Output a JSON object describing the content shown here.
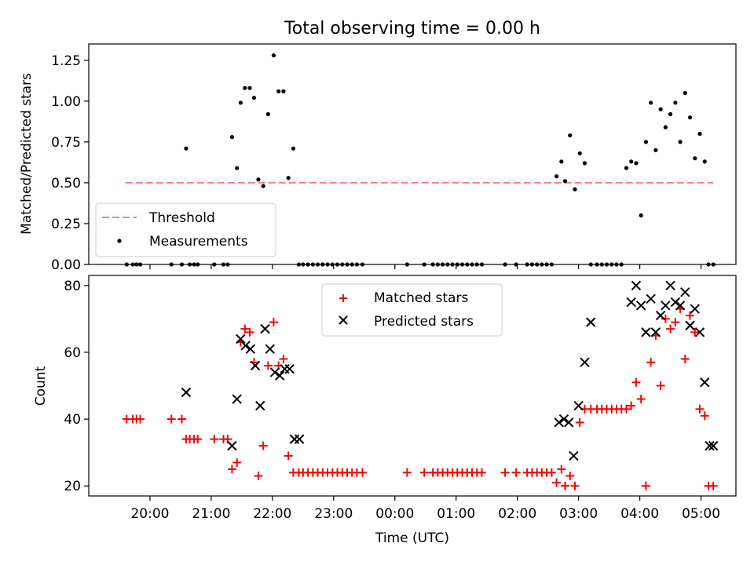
{
  "chart_data": [
    {
      "type": "scatter",
      "title": "Total observing time = 0.00 h",
      "ylabel": "Matched/Predicted stars",
      "ylim": [
        0,
        1.35
      ],
      "yticks": [
        0,
        0.25,
        0.5,
        0.75,
        1.0,
        1.25
      ],
      "ytick_labels": [
        "0.00",
        "0.25",
        "0.50",
        "0.75",
        "1.00",
        "1.25"
      ],
      "legend_position": "lower-left",
      "threshold": {
        "name": "Threshold",
        "value": 0.5,
        "x_start": 19.6,
        "x_end": 29.2,
        "color": "#ff7f7f"
      },
      "measurements": {
        "name": "Measurements",
        "color": "#000000",
        "x": [
          19.62,
          19.72,
          19.78,
          19.84,
          20.35,
          20.52,
          20.59,
          20.65,
          20.72,
          20.78,
          21.05,
          21.2,
          21.27,
          21.34,
          21.42,
          21.48,
          21.55,
          21.63,
          21.7,
          21.77,
          21.85,
          21.93,
          22.02,
          22.1,
          22.18,
          22.26,
          22.34,
          22.43,
          22.5,
          22.58,
          22.66,
          22.74,
          22.82,
          22.9,
          22.98,
          23.06,
          23.14,
          23.22,
          23.3,
          23.38,
          23.47,
          24.2,
          24.48,
          24.62,
          24.7,
          24.78,
          24.86,
          24.94,
          25.02,
          25.1,
          25.18,
          25.26,
          25.34,
          25.42,
          25.8,
          25.98,
          26.16,
          26.24,
          26.32,
          26.4,
          26.48,
          26.56,
          26.64,
          26.72,
          26.78,
          26.86,
          26.94,
          27.02,
          27.1,
          27.2,
          27.3,
          27.38,
          27.46,
          27.54,
          27.62,
          27.7,
          27.78,
          27.86,
          27.94,
          28.02,
          28.1,
          28.18,
          28.26,
          28.34,
          28.42,
          28.5,
          28.58,
          28.66,
          28.74,
          28.82,
          28.9,
          28.98,
          29.06,
          29.12,
          29.2
        ],
        "y": [
          0,
          0,
          0,
          0,
          0,
          0,
          0.71,
          0,
          0,
          0,
          0,
          0,
          0,
          0.78,
          0.59,
          0.99,
          1.08,
          1.08,
          1.02,
          0.52,
          0.48,
          0.92,
          1.28,
          1.06,
          1.06,
          0.53,
          0.71,
          0,
          0,
          0,
          0,
          0,
          0,
          0,
          0,
          0,
          0,
          0,
          0,
          0,
          0,
          0,
          0,
          0,
          0,
          0,
          0,
          0,
          0,
          0,
          0,
          0,
          0,
          0,
          0,
          0,
          0,
          0,
          0,
          0,
          0,
          0,
          0.54,
          0.63,
          0.51,
          0.79,
          0.46,
          0.68,
          0.62,
          0,
          0,
          0,
          0,
          0,
          0,
          0,
          0.59,
          0.63,
          0.62,
          0.3,
          0.75,
          0.99,
          0.7,
          0.95,
          0.84,
          0.92,
          0.99,
          0.75,
          1.05,
          0.9,
          0.65,
          0.8,
          0.63,
          0,
          0
        ]
      }
    },
    {
      "type": "scatter",
      "xlabel": "Time (UTC)",
      "ylabel": "Count",
      "ylim": [
        17,
        83
      ],
      "xlim": [
        19.0,
        29.57
      ],
      "yticks": [
        20,
        40,
        60,
        80
      ],
      "ytick_labels": [
        "20",
        "40",
        "60",
        "80"
      ],
      "xticks": [
        20,
        21,
        22,
        23,
        24,
        25,
        26,
        27,
        28,
        29
      ],
      "xtick_labels": [
        "20:00",
        "21:00",
        "22:00",
        "23:00",
        "00:00",
        "01:00",
        "02:00",
        "03:00",
        "04:00",
        "05:00"
      ],
      "legend_position": "upper-center",
      "series": [
        {
          "name": "Matched stars",
          "marker": "plus",
          "color": "#ff0000",
          "x": [
            19.62,
            19.72,
            19.78,
            19.84,
            20.35,
            20.52,
            20.59,
            20.65,
            20.72,
            20.78,
            21.05,
            21.2,
            21.27,
            21.34,
            21.42,
            21.48,
            21.55,
            21.63,
            21.7,
            21.77,
            21.85,
            21.93,
            22.02,
            22.1,
            22.18,
            22.26,
            22.34,
            22.43,
            22.5,
            22.58,
            22.66,
            22.74,
            22.82,
            22.9,
            22.98,
            23.06,
            23.14,
            23.22,
            23.3,
            23.38,
            23.47,
            24.2,
            24.48,
            24.62,
            24.7,
            24.78,
            24.86,
            24.94,
            25.02,
            25.1,
            25.18,
            25.26,
            25.34,
            25.42,
            25.8,
            25.98,
            26.16,
            26.24,
            26.32,
            26.4,
            26.48,
            26.56,
            26.64,
            26.72,
            26.78,
            26.86,
            26.94,
            27.02,
            27.1,
            27.2,
            27.3,
            27.38,
            27.46,
            27.54,
            27.62,
            27.7,
            27.78,
            27.86,
            27.94,
            28.02,
            28.1,
            28.18,
            28.26,
            28.34,
            28.42,
            28.5,
            28.58,
            28.66,
            28.74,
            28.82,
            28.9,
            28.98,
            29.06,
            29.12,
            29.2
          ],
          "y": [
            40,
            40,
            40,
            40,
            40,
            40,
            34,
            34,
            34,
            34,
            34,
            34,
            34,
            25,
            27,
            63,
            67,
            66,
            57,
            23,
            32,
            56,
            69,
            56,
            58,
            29,
            24,
            24,
            24,
            24,
            24,
            24,
            24,
            24,
            24,
            24,
            24,
            24,
            24,
            24,
            24,
            24,
            24,
            24,
            24,
            24,
            24,
            24,
            24,
            24,
            24,
            24,
            24,
            24,
            24,
            24,
            24,
            24,
            24,
            24,
            24,
            24,
            21,
            25,
            20,
            23,
            20,
            39,
            43,
            43,
            43,
            43,
            43,
            43,
            43,
            43,
            43,
            44,
            51,
            46,
            20,
            57,
            65,
            50,
            70,
            67,
            69,
            73,
            58,
            71,
            66,
            43,
            41,
            20,
            20
          ]
        },
        {
          "name": "Predicted stars",
          "marker": "x",
          "color": "#000000",
          "x": [
            20.59,
            21.34,
            21.42,
            21.48,
            21.56,
            21.64,
            21.72,
            21.8,
            21.88,
            21.96,
            22.04,
            22.12,
            22.2,
            22.28,
            22.36,
            22.44,
            26.68,
            26.76,
            26.84,
            26.92,
            27.0,
            27.1,
            27.2,
            27.86,
            27.94,
            28.02,
            28.1,
            28.18,
            28.26,
            28.34,
            28.42,
            28.5,
            28.58,
            28.66,
            28.74,
            28.82,
            28.9,
            28.98,
            29.06,
            29.14,
            29.2
          ],
          "y": [
            48,
            32,
            46,
            64,
            62,
            61,
            56,
            44,
            67,
            61,
            54,
            53,
            55,
            55,
            34,
            34,
            39,
            40,
            39,
            29,
            44,
            57,
            69,
            75,
            80,
            74,
            66,
            76,
            66,
            71,
            74,
            80,
            75,
            74,
            78,
            68,
            73,
            66,
            51,
            32,
            32
          ]
        }
      ]
    }
  ]
}
